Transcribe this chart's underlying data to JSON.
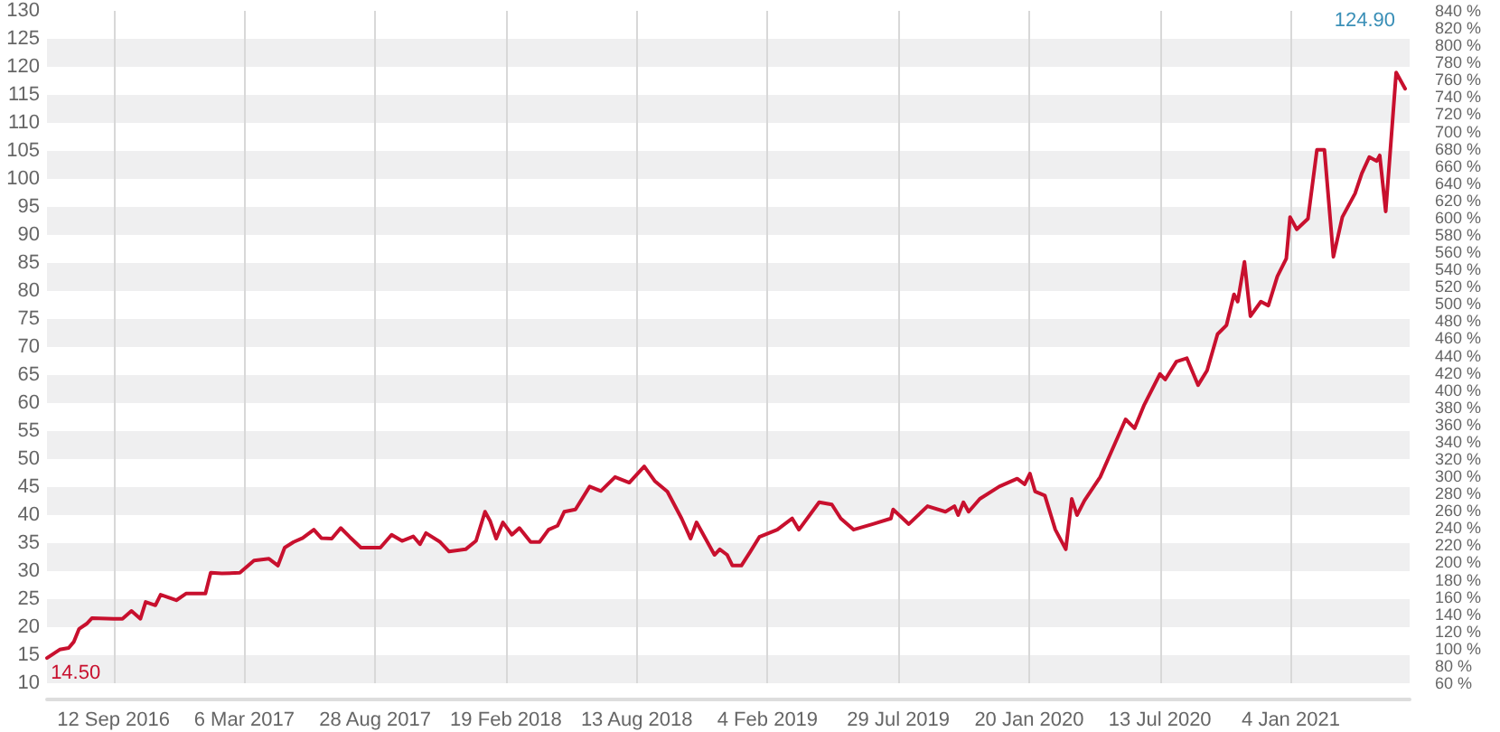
{
  "chart_data": {
    "type": "line",
    "x": [
      "2016-06-15",
      "2016-07-02",
      "2016-07-14",
      "2016-07-21",
      "2016-07-28",
      "2016-08-07",
      "2016-08-14",
      "2016-09-12",
      "2016-09-24",
      "2016-10-06",
      "2016-10-18",
      "2016-10-25",
      "2016-11-07",
      "2016-11-14",
      "2016-12-05",
      "2016-12-18",
      "2017-01-13",
      "2017-01-20",
      "2017-02-04",
      "2017-02-28",
      "2017-03-19",
      "2017-04-08",
      "2017-04-20",
      "2017-04-29",
      "2017-05-11",
      "2017-05-23",
      "2017-06-07",
      "2017-06-17",
      "2017-07-01",
      "2017-07-13",
      "2017-07-25",
      "2017-08-09",
      "2017-09-04",
      "2017-09-19",
      "2017-10-03",
      "2017-10-18",
      "2017-10-27",
      "2017-11-04",
      "2017-11-23",
      "2017-12-05",
      "2017-12-27",
      "2018-01-10",
      "2018-01-22",
      "2018-01-29",
      "2018-02-06",
      "2018-02-15",
      "2018-02-27",
      "2018-03-09",
      "2018-03-24",
      "2018-04-05",
      "2018-04-17",
      "2018-04-29",
      "2018-05-08",
      "2018-05-23",
      "2018-06-11",
      "2018-06-26",
      "2018-07-15",
      "2018-08-03",
      "2018-08-23",
      "2018-09-06",
      "2018-09-23",
      "2018-10-12",
      "2018-10-24",
      "2018-11-01",
      "2018-11-25",
      "2018-12-02",
      "2018-12-12",
      "2018-12-19",
      "2018-12-31",
      "2019-01-12",
      "2019-01-24",
      "2019-02-17",
      "2019-03-09",
      "2019-03-18",
      "2019-04-14",
      "2019-05-01",
      "2019-05-13",
      "2019-05-30",
      "2019-06-25",
      "2019-07-19",
      "2019-07-22",
      "2019-08-12",
      "2019-09-06",
      "2019-09-30",
      "2019-10-12",
      "2019-10-17",
      "2019-10-24",
      "2019-10-31",
      "2019-11-15",
      "2019-12-11",
      "2020-01-04",
      "2020-01-14",
      "2020-01-21",
      "2020-01-28",
      "2020-02-10",
      "2020-02-24",
      "2020-03-09",
      "2020-03-17",
      "2020-03-24",
      "2020-04-03",
      "2020-04-24",
      "2020-05-28",
      "2020-06-09",
      "2020-06-22",
      "2020-07-13",
      "2020-07-20",
      "2020-08-04",
      "2020-08-18",
      "2020-09-02",
      "2020-09-14",
      "2020-09-28",
      "2020-10-10",
      "2020-10-20",
      "2020-10-25",
      "2020-11-03",
      "2020-11-11",
      "2020-11-25",
      "2020-12-05",
      "2020-12-17",
      "2020-12-29",
      "2021-01-03",
      "2021-01-12",
      "2021-01-27",
      "2021-02-08",
      "2021-02-18",
      "2021-03-02",
      "2021-03-14",
      "2021-03-31",
      "2021-04-09",
      "2021-04-19",
      "2021-04-29",
      "2021-05-03",
      "2021-05-11",
      "2021-05-25",
      "2021-06-06"
    ],
    "series": [
      {
        "color": "#c8102e",
        "values": [
          14.5,
          16,
          16.3,
          17.4,
          19.7,
          20.6,
          21.6,
          21.5,
          21.5,
          22.9,
          21.5,
          24.5,
          23.9,
          25.8,
          24.8,
          26,
          26,
          29.7,
          29.6,
          29.7,
          31.9,
          32.2,
          31,
          34.2,
          35.2,
          35.9,
          37.4,
          35.9,
          35.8,
          37.7,
          36.1,
          34.2,
          34.2,
          36.5,
          35.4,
          36.2,
          34.8,
          36.8,
          35.2,
          33.5,
          33.9,
          35.4,
          40.6,
          38.9,
          35.8,
          38.7,
          36.5,
          37.7,
          35.2,
          35.2,
          37.4,
          38.1,
          40.6,
          41,
          45.1,
          44.3,
          46.8,
          45.8,
          48.7,
          46.1,
          44.2,
          39.4,
          35.8,
          38.7,
          32.9,
          33.9,
          32.9,
          31,
          31,
          33.5,
          36.1,
          37.4,
          39.4,
          37.4,
          42.3,
          41.9,
          39.4,
          37.4,
          38.4,
          39.4,
          41,
          38.4,
          41.6,
          40.6,
          41.6,
          40,
          42.3,
          40.6,
          42.9,
          45.1,
          46.5,
          45.5,
          47.4,
          44.2,
          43.5,
          37.4,
          33.9,
          42.9,
          40,
          42.6,
          46.8,
          57.1,
          55.5,
          59.7,
          65.2,
          64.2,
          67.4,
          68,
          63.2,
          65.8,
          72.3,
          73.9,
          79.4,
          78.1,
          85.2,
          75.5,
          78.1,
          77.4,
          82.6,
          85.8,
          93.2,
          91,
          92.9,
          105.2,
          105.2,
          86.1,
          93.2,
          97.4,
          101,
          103.9,
          103.2,
          104.2,
          94.2,
          119,
          116.1
        ]
      }
    ],
    "xlim": [
      "2016-06-15",
      "2021-06-12"
    ],
    "xticks": [
      {
        "value": "2016-09-12",
        "label": "12 Sep 2016"
      },
      {
        "value": "2017-03-06",
        "label": "6 Mar 2017"
      },
      {
        "value": "2017-08-28",
        "label": "28 Aug 2017"
      },
      {
        "value": "2018-02-19",
        "label": "19 Feb 2018"
      },
      {
        "value": "2018-08-13",
        "label": "13 Aug 2018"
      },
      {
        "value": "2019-02-04",
        "label": "4 Feb 2019"
      },
      {
        "value": "2019-07-29",
        "label": "29 Jul 2019"
      },
      {
        "value": "2020-01-20",
        "label": "20 Jan 2020"
      },
      {
        "value": "2020-07-13",
        "label": "13 Jul 2020"
      },
      {
        "value": "2021-01-04",
        "label": "4 Jan 2021"
      }
    ],
    "ylim": [
      10,
      130
    ],
    "yticks": [
      10,
      15,
      20,
      25,
      30,
      35,
      40,
      45,
      50,
      55,
      60,
      65,
      70,
      75,
      80,
      85,
      90,
      95,
      100,
      105,
      110,
      115,
      120,
      125,
      130
    ],
    "y2lim": [
      60,
      840
    ],
    "y2ticks": [
      {
        "value": 60,
        "label": "60 %"
      },
      {
        "value": 80,
        "label": "80 %"
      },
      {
        "value": 100,
        "label": "100 %"
      },
      {
        "value": 120,
        "label": "120 %"
      },
      {
        "value": 140,
        "label": "140 %"
      },
      {
        "value": 160,
        "label": "160 %"
      },
      {
        "value": 180,
        "label": "180 %"
      },
      {
        "value": 200,
        "label": "200 %"
      },
      {
        "value": 220,
        "label": "220 %"
      },
      {
        "value": 240,
        "label": "240 %"
      },
      {
        "value": 260,
        "label": "260 %"
      },
      {
        "value": 280,
        "label": "280 %"
      },
      {
        "value": 300,
        "label": "300 %"
      },
      {
        "value": 320,
        "label": "320 %"
      },
      {
        "value": 340,
        "label": "340 %"
      },
      {
        "value": 360,
        "label": "360 %"
      },
      {
        "value": 380,
        "label": "380 %"
      },
      {
        "value": 400,
        "label": "400 %"
      },
      {
        "value": 420,
        "label": "420 %"
      },
      {
        "value": 440,
        "label": "440 %"
      },
      {
        "value": 460,
        "label": "460 %"
      },
      {
        "value": 480,
        "label": "480 %"
      },
      {
        "value": 500,
        "label": "500 %"
      },
      {
        "value": 520,
        "label": "520 %"
      },
      {
        "value": 540,
        "label": "540 %"
      },
      {
        "value": 560,
        "label": "560 %"
      },
      {
        "value": 580,
        "label": "580 %"
      },
      {
        "value": 600,
        "label": "600 %"
      },
      {
        "value": 620,
        "label": "620 %"
      },
      {
        "value": 640,
        "label": "640 %"
      },
      {
        "value": 660,
        "label": "660 %"
      },
      {
        "value": 680,
        "label": "680 %"
      },
      {
        "value": 700,
        "label": "700 %"
      },
      {
        "value": 720,
        "label": "720 %"
      },
      {
        "value": 740,
        "label": "740 %"
      },
      {
        "value": 760,
        "label": "760 %"
      },
      {
        "value": 780,
        "label": "780 %"
      },
      {
        "value": 800,
        "label": "800 %"
      },
      {
        "value": 820,
        "label": "820 %"
      },
      {
        "value": 840,
        "label": "840 %"
      }
    ],
    "annotations": [
      {
        "text": "14.50",
        "x": "2016-06-20",
        "y": 14.5
      },
      "124.90"
    ],
    "grid": true,
    "marker": "none",
    "line_style": "solid"
  }
}
